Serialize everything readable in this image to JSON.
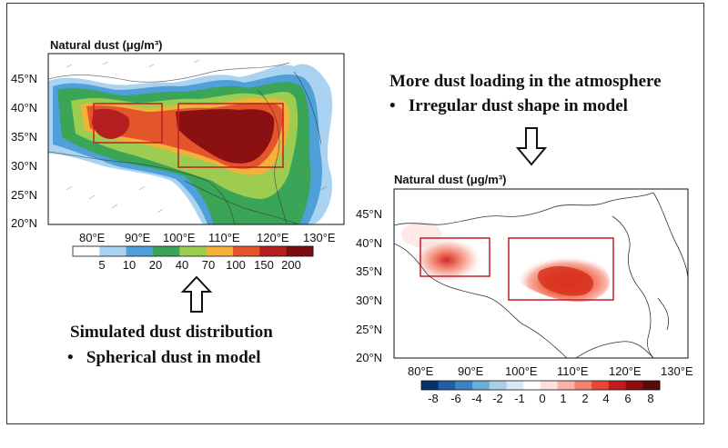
{
  "map_left": {
    "title": "Natural dust (μg/m³)",
    "lat_labels": [
      "45°N",
      "40°N",
      "35°N",
      "30°N",
      "25°N",
      "20°N"
    ],
    "lon_labels": [
      "80°E",
      "90°E",
      "100°E",
      "110°E",
      "120°E",
      "130°E"
    ],
    "colorbar": {
      "labels": [
        "5",
        "10",
        "20",
        "40",
        "70",
        "100",
        "150",
        "200"
      ],
      "colors": [
        "#ffffff",
        "#a9d3f0",
        "#4f9fd8",
        "#3aa457",
        "#9ccc50",
        "#f2b23a",
        "#e4552b",
        "#b41f1f",
        "#7a0d10"
      ]
    },
    "boxes": [
      "west-box",
      "east-box"
    ]
  },
  "map_right": {
    "title": "Natural dust (μg/m³)",
    "lat_labels": [
      "45°N",
      "40°N",
      "35°N",
      "30°N",
      "25°N",
      "20°N"
    ],
    "lon_labels": [
      "80°E",
      "90°E",
      "100°E",
      "110°E",
      "120°E",
      "130°E"
    ],
    "colorbar": {
      "labels": [
        "-8",
        "-6",
        "-4",
        "-2",
        "-1",
        "0",
        "1",
        "2",
        "4",
        "6",
        "8"
      ],
      "colors": [
        "#08306b",
        "#1f5fa8",
        "#3b84c4",
        "#6baed6",
        "#a9cfe8",
        "#d6e9f5",
        "#ffffff",
        "#fde0dc",
        "#f9b3a8",
        "#f28270",
        "#e4472f",
        "#c21d1d",
        "#8e0c0c",
        "#5a0808"
      ]
    }
  },
  "captions": {
    "top_main": "More dust loading in the atmosphere",
    "top_bullet": "Irregular dust shape in model",
    "bottom_main": "Simulated dust distribution",
    "bottom_bullet": "Spherical dust in model",
    "bullet_symbol": "•"
  }
}
